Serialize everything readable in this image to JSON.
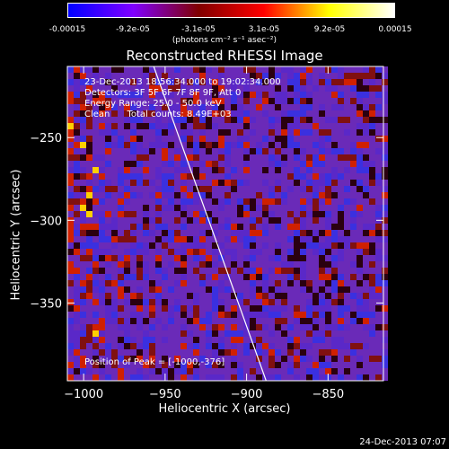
{
  "colorbar": {
    "ticks": [
      "-0.00015",
      "-9.2e-05",
      "-3.1e-05",
      "3.1e-05",
      "9.2e-05",
      "0.00015"
    ],
    "unit": "(photons cm⁻² s⁻¹ asec⁻²)"
  },
  "annotations": {
    "line1": "23-Dec-2013 18:56:34.000 to 19:02:34.000",
    "line2": "Detectors: 3F 5F 6F 7F 8F 9F, Att 0",
    "line3": "Energy Range: 25.0 - 50.0 keV",
    "line4": "Clean      Total counts: 8.49E+03",
    "peak": "Position of Peak = [-1000,-376]"
  },
  "timestamp": "24-Dec-2013 07:07",
  "chart_data": {
    "type": "heatmap",
    "title": "Reconstructed RHESSI Image",
    "xlabel": "Heliocentric X (arcsec)",
    "ylabel": "Heliocentric Y (arcsec)",
    "xlim": [
      -1010,
      -816
    ],
    "ylim": [
      -397,
      -207
    ],
    "x_ticks": [
      -1000,
      -950,
      -900,
      -850
    ],
    "y_ticks": [
      -250,
      -300,
      -350
    ],
    "colormap": [
      "#0000ff",
      "#8000ff",
      "#800000",
      "#ff0000",
      "#ffff00",
      "#ffffff"
    ],
    "limb_line": [
      [
        -957,
        -207
      ],
      [
        -888,
        -397
      ]
    ],
    "peak": [
      -1000,
      -376
    ]
  }
}
